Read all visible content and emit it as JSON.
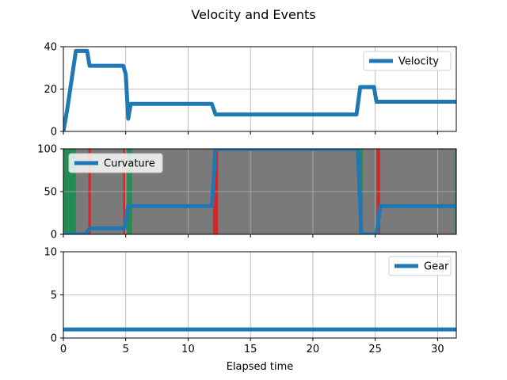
{
  "chart_data": {
    "type": "line",
    "title": "Velocity and Events",
    "xlabel": "Elapsed time",
    "xlim": [
      0,
      31.5
    ],
    "xticks": [
      0,
      5,
      10,
      15,
      20,
      25,
      30
    ],
    "grid": true,
    "line_color": "#1f77b4",
    "event_colors": {
      "gray": "#7a7a7a",
      "green": "#238c55",
      "red": "#d62728"
    },
    "panels": [
      {
        "id": "velocity",
        "ylim": [
          0,
          40
        ],
        "yticks": [
          0,
          20,
          40
        ],
        "legend": {
          "label": "Velocity",
          "location": "upper right"
        },
        "series": {
          "name": "Velocity",
          "x": [
            0,
            0.3,
            1.0,
            1.9,
            2.1,
            4.8,
            5.0,
            5.2,
            5.4,
            11.9,
            12.2,
            23.5,
            23.8,
            24.9,
            25.1,
            31.5
          ],
          "y": [
            0,
            10,
            38,
            38,
            31,
            31,
            27,
            6,
            13,
            13,
            8,
            8,
            21,
            21,
            14,
            14
          ]
        }
      },
      {
        "id": "curvature",
        "ylim": [
          0,
          100
        ],
        "yticks": [
          0,
          50,
          100
        ],
        "legend": {
          "label": "Curvature",
          "location": "upper left"
        },
        "series": {
          "name": "Curvature",
          "x": [
            0,
            1.8,
            2.1,
            4.9,
            5.2,
            11.9,
            12.2,
            23.6,
            23.9,
            25.1,
            25.4,
            31.5
          ],
          "y": [
            0,
            0,
            7,
            7,
            33,
            33,
            100,
            100,
            0,
            0,
            33,
            33
          ]
        },
        "event_bands": [
          {
            "x0": 0,
            "x1": 31.5,
            "color": "gray"
          },
          {
            "x0": 0,
            "x1": 1.0,
            "color": "green"
          },
          {
            "x0": 2.0,
            "x1": 2.2,
            "color": "red"
          },
          {
            "x0": 4.8,
            "x1": 5.0,
            "color": "red"
          },
          {
            "x0": 5.1,
            "x1": 5.5,
            "color": "green"
          },
          {
            "x0": 12.0,
            "x1": 12.4,
            "color": "red"
          },
          {
            "x0": 23.7,
            "x1": 24.0,
            "color": "green"
          },
          {
            "x0": 25.1,
            "x1": 25.4,
            "color": "red"
          },
          {
            "x0": 31.4,
            "x1": 31.5,
            "color": "green"
          }
        ]
      },
      {
        "id": "gear",
        "ylim": [
          0,
          10
        ],
        "yticks": [
          0,
          5,
          10
        ],
        "legend": {
          "label": "Gear",
          "location": "upper right"
        },
        "series": {
          "name": "Gear",
          "x": [
            0,
            31.5
          ],
          "y": [
            1,
            1
          ]
        }
      }
    ]
  }
}
